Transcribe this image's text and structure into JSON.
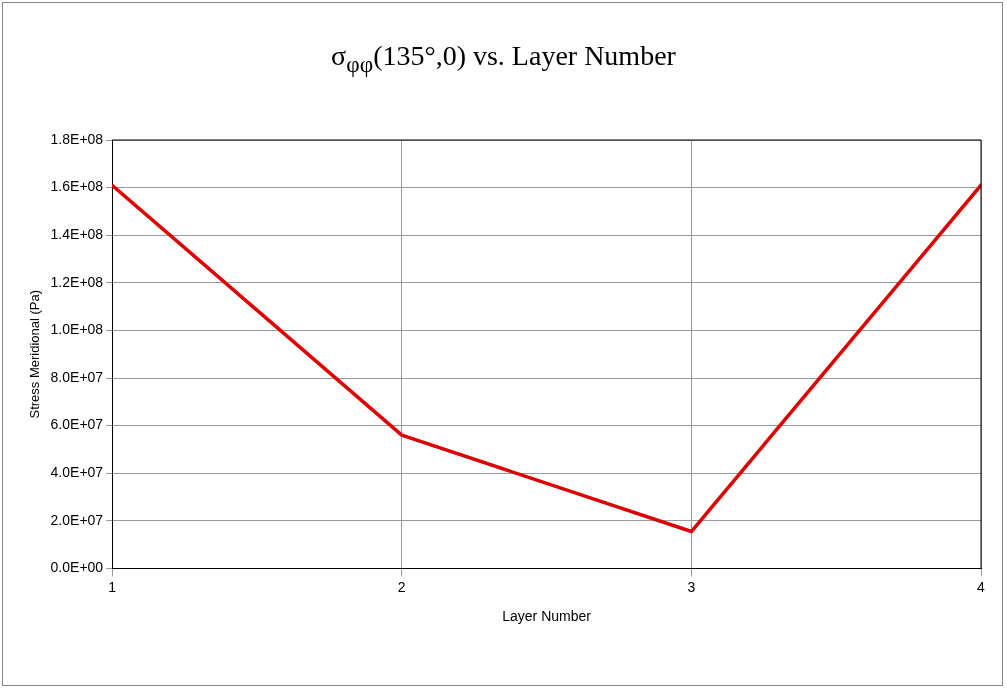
{
  "chart_data": {
    "type": "line",
    "title": "σ$_{φφ}$(135°,0) vs. Layer Number",
    "xlabel": "Layer Number",
    "ylabel": "Stress Meridional (Pa)",
    "x": [
      1,
      2,
      3,
      4
    ],
    "series": [
      {
        "color": "#e00000",
        "values": [
          161000000,
          56000000,
          15500000,
          161000000
        ]
      }
    ],
    "xlim": [
      1,
      4
    ],
    "xticks": [
      1,
      2,
      3,
      4
    ],
    "ylim": [
      0,
      180000000
    ],
    "yticks": [
      {
        "value": 0,
        "label": "0.0E+00"
      },
      {
        "value": 20000000,
        "label": "2.0E+07"
      },
      {
        "value": 40000000,
        "label": "4.0E+07"
      },
      {
        "value": 60000000,
        "label": "6.0E+07"
      },
      {
        "value": 80000000,
        "label": "8.0E+07"
      },
      {
        "value": 100000000,
        "label": "1.0E+08"
      },
      {
        "value": 120000000,
        "label": "1.2E+08"
      },
      {
        "value": 140000000,
        "label": "1.4E+08"
      },
      {
        "value": 160000000,
        "label": "1.6E+08"
      },
      {
        "value": 180000000,
        "label": "1.8E+08"
      }
    ],
    "grid": true,
    "marker": "none",
    "line_style": "solid"
  }
}
